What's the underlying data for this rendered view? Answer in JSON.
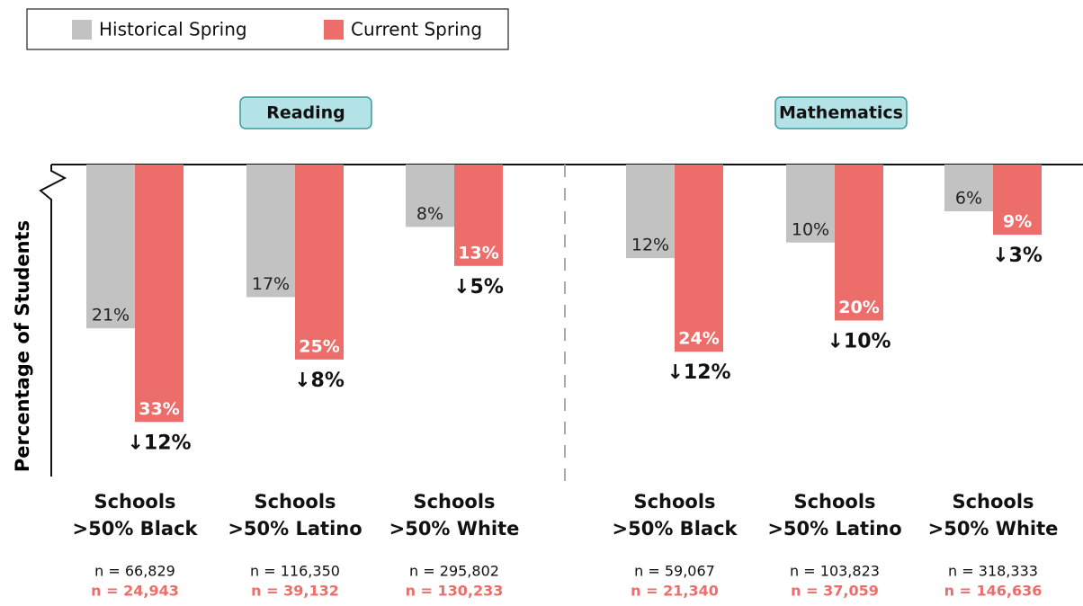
{
  "chart_data": {
    "type": "bar",
    "ylabel": "Percentage of Students",
    "ylim": [
      0,
      40
    ],
    "panels": [
      "Reading",
      "Mathematics"
    ],
    "categories": [
      "Schools\n>50% Black",
      "Schools\n>50% Latino",
      "Schools\n>50% White",
      "Schools\n>50% Black",
      "Schools\n>50% Latino",
      "Schools\n>50% White"
    ],
    "series": [
      {
        "name": "Historical Spring",
        "color": "#c2c2c2",
        "values": [
          21,
          17,
          8,
          12,
          10,
          6
        ],
        "value_labels": [
          "21%",
          "17%",
          "8%",
          "12%",
          "10%",
          "6%"
        ],
        "n_labels": [
          "n = 66,829",
          "n = 116,350",
          "n = 295,802",
          "n = 59,067",
          "n = 103,823",
          "n = 318,333"
        ]
      },
      {
        "name": "Current Spring",
        "color": "#ec6d69",
        "values": [
          33,
          25,
          13,
          24,
          20,
          9
        ],
        "value_labels": [
          "33%",
          "25%",
          "13%",
          "24%",
          "20%",
          "9%"
        ],
        "n_labels": [
          "n = 24,943",
          "n = 39,132",
          "n = 130,233",
          "n = 21,340",
          "n = 37,059",
          "n = 146,636"
        ]
      }
    ],
    "differences": [
      12,
      8,
      5,
      12,
      10,
      3
    ],
    "difference_labels": [
      "↓12%",
      "↓8%",
      "↓5%",
      "↓12%",
      "↓10%",
      "↓3%"
    ]
  }
}
